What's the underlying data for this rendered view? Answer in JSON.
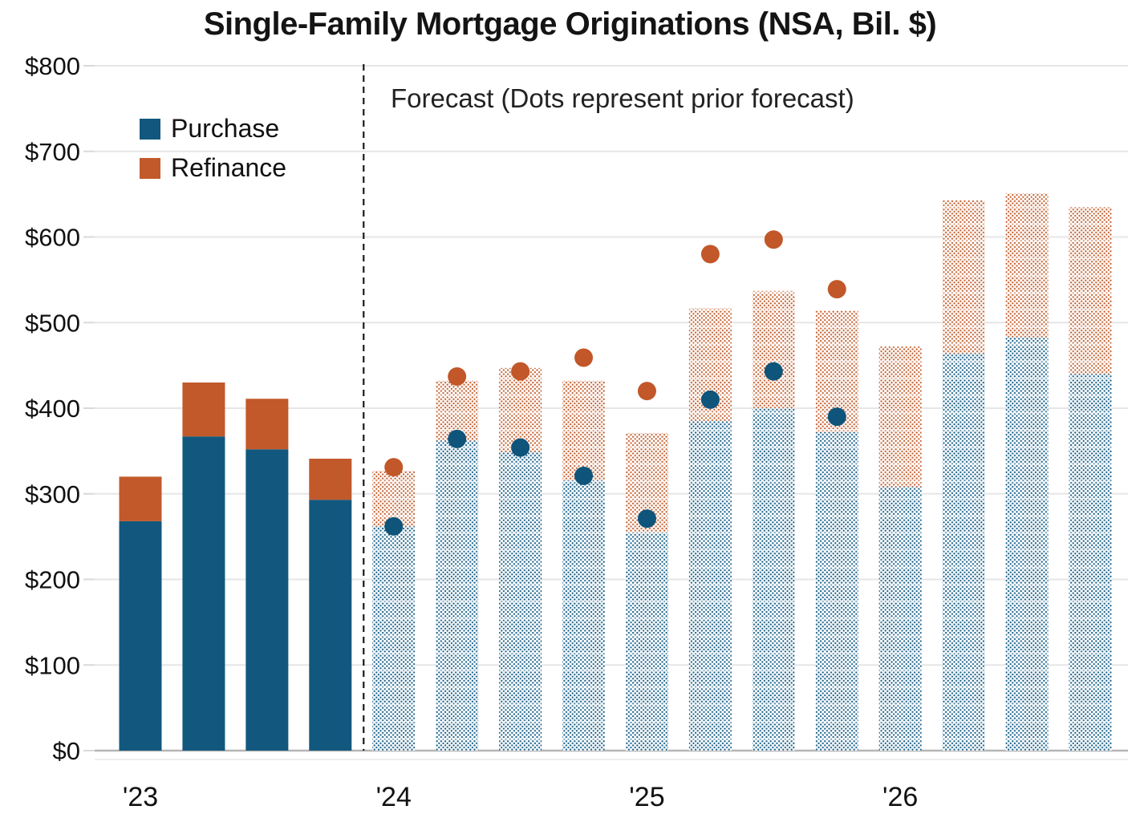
{
  "chart_data": {
    "type": "bar",
    "variant": "stacked-quarterly-with-forecast",
    "title": "Single-Family Mortgage Originations (NSA, Bil. $)",
    "forecast_note": "Forecast (Dots represent prior forecast)",
    "unit": "Bil. $",
    "legend": [
      {
        "label": "Purchase",
        "color": "#12587e"
      },
      {
        "label": "Refinance",
        "color": "#c2592b"
      }
    ],
    "colors": {
      "purchase_solid": "#12587e",
      "refinance_solid": "#c2592b",
      "purchase_hatch_dot": "#19618a",
      "refinance_hatch_dot": "#c4602f",
      "prior_dot_purchase": "#0f547a",
      "prior_dot_total": "#c2572a",
      "gridline": "#e6e6e6",
      "baseline": "#b5b5b5",
      "separator": "#1a1a1a",
      "text": "#111111"
    },
    "y_axis": {
      "min": 0,
      "max": 800,
      "step": 100,
      "tick_labels": [
        "$0",
        "$100",
        "$200",
        "$300",
        "$400",
        "$500",
        "$600",
        "$700",
        "$800"
      ],
      "grid": true
    },
    "x_axis": {
      "year_labels": [
        "'23",
        "'24",
        "'25",
        "'26"
      ],
      "quarters_per_year": 4
    },
    "series_note": "purchase and refinance stack to total; prior_purchase / prior_total are dot markers of the prior forecast",
    "quarters": [
      {
        "year": "'23",
        "quarter": "Q1",
        "purchase": 268,
        "refinance": 52,
        "forecast": false
      },
      {
        "year": "'23",
        "quarter": "Q2",
        "purchase": 367,
        "refinance": 63,
        "forecast": false
      },
      {
        "year": "'23",
        "quarter": "Q3",
        "purchase": 352,
        "refinance": 59,
        "forecast": false
      },
      {
        "year": "'23",
        "quarter": "Q4",
        "purchase": 293,
        "refinance": 48,
        "forecast": false
      },
      {
        "year": "'24",
        "quarter": "Q1",
        "purchase": 262,
        "refinance": 65,
        "forecast": true,
        "prior_purchase": 262,
        "prior_total": 331
      },
      {
        "year": "'24",
        "quarter": "Q2",
        "purchase": 362,
        "refinance": 70,
        "forecast": true,
        "prior_purchase": 364,
        "prior_total": 437
      },
      {
        "year": "'24",
        "quarter": "Q3",
        "purchase": 349,
        "refinance": 98,
        "forecast": true,
        "prior_purchase": 354,
        "prior_total": 443
      },
      {
        "year": "'24",
        "quarter": "Q4",
        "purchase": 316,
        "refinance": 116,
        "forecast": true,
        "prior_purchase": 321,
        "prior_total": 459
      },
      {
        "year": "'25",
        "quarter": "Q1",
        "purchase": 255,
        "refinance": 116,
        "forecast": true,
        "prior_purchase": 271,
        "prior_total": 420
      },
      {
        "year": "'25",
        "quarter": "Q2",
        "purchase": 385,
        "refinance": 132,
        "forecast": true,
        "prior_purchase": 410,
        "prior_total": 580
      },
      {
        "year": "'25",
        "quarter": "Q3",
        "purchase": 400,
        "refinance": 137,
        "forecast": true,
        "prior_purchase": 443,
        "prior_total": 597
      },
      {
        "year": "'25",
        "quarter": "Q4",
        "purchase": 372,
        "refinance": 142,
        "forecast": true,
        "prior_purchase": 390,
        "prior_total": 539
      },
      {
        "year": "'26",
        "quarter": "Q1",
        "purchase": 308,
        "refinance": 164,
        "forecast": true
      },
      {
        "year": "'26",
        "quarter": "Q2",
        "purchase": 464,
        "refinance": 179,
        "forecast": true
      },
      {
        "year": "'26",
        "quarter": "Q3",
        "purchase": 483,
        "refinance": 168,
        "forecast": true
      },
      {
        "year": "'26",
        "quarter": "Q4",
        "purchase": 440,
        "refinance": 195,
        "forecast": true
      }
    ],
    "separator_after_index": 3
  }
}
